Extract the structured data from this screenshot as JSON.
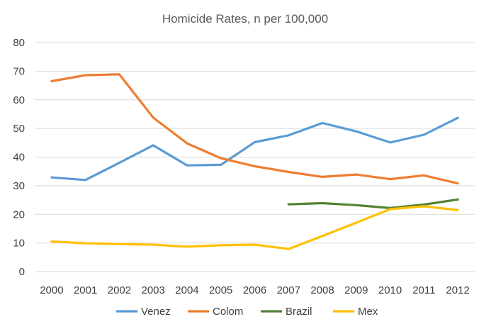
{
  "chart_data": {
    "type": "line",
    "title": "Homicide Rates, n per 100,000",
    "xlabel": "",
    "ylabel": "",
    "x": [
      "2000",
      "2001",
      "2002",
      "2003",
      "2004",
      "2005",
      "2006",
      "2007",
      "2008",
      "2009",
      "2010",
      "2011",
      "2012"
    ],
    "ylim": [
      0,
      80
    ],
    "yticks": [
      0,
      10,
      20,
      30,
      40,
      50,
      60,
      70,
      80
    ],
    "grid": true,
    "legend_position": "bottom",
    "series": [
      {
        "name": "Venez",
        "color": "#5b9bd5",
        "values": [
          32.9,
          32.0,
          38.0,
          44.1,
          37.1,
          37.3,
          45.2,
          47.6,
          51.9,
          49.0,
          45.1,
          47.8,
          53.7
        ]
      },
      {
        "name": "Colom",
        "color": "#ed7d31",
        "values": [
          66.5,
          68.6,
          68.9,
          53.8,
          44.8,
          39.6,
          36.8,
          34.8,
          33.1,
          33.9,
          32.3,
          33.6,
          30.8
        ]
      },
      {
        "name": "Brazil",
        "color": "#548235",
        "values": [
          null,
          null,
          null,
          null,
          null,
          null,
          null,
          23.5,
          23.9,
          23.2,
          22.2,
          23.4,
          25.2
        ]
      },
      {
        "name": "Mex",
        "color": "#ffc000",
        "values": [
          10.5,
          9.9,
          9.6,
          9.4,
          8.7,
          9.2,
          9.4,
          7.9,
          12.4,
          17.1,
          21.8,
          22.8,
          21.5
        ]
      }
    ]
  }
}
